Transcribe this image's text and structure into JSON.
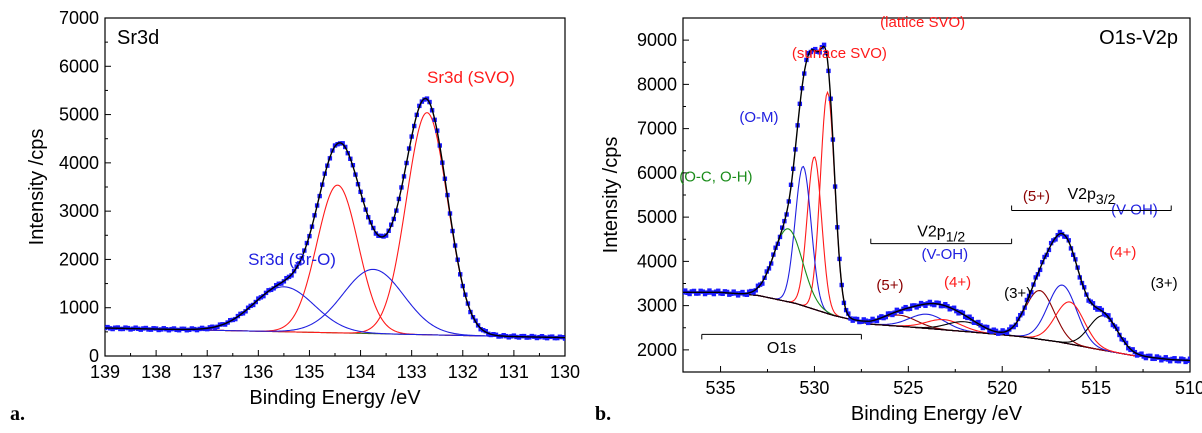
{
  "colors": {
    "axis": "#000000",
    "data": "#1a1aff",
    "fit": "#000000",
    "red": "#ff1a1a",
    "blue": "#2020e0",
    "green": "#1a8c1a",
    "darkred": "#8b0000",
    "black": "#000000",
    "bg": "#ffffff"
  },
  "chart_data": [
    {
      "type": "line",
      "panel": "a.",
      "label": "Sr3d",
      "xlabel": "Binding Energy /eV",
      "ylabel": "Intensity /cps",
      "xlim": [
        139,
        130
      ],
      "ylim": [
        0,
        7000
      ],
      "xticks": [
        139,
        138,
        137,
        136,
        135,
        134,
        133,
        132,
        131,
        130
      ],
      "yticks": [
        0,
        1000,
        2000,
        3000,
        4000,
        5000,
        6000,
        7000
      ],
      "background": {
        "x": [
          139,
          130
        ],
        "y": [
          580,
          380
        ]
      },
      "peaks": [
        {
          "name": "Sr3d (SVO)",
          "color": "red",
          "center": 132.7,
          "height": 4600,
          "fwhm": 0.95
        },
        {
          "name": "",
          "color": "red",
          "center": 134.45,
          "height": 3060,
          "fwhm": 0.95
        },
        {
          "name": "Sr3d (Sr-O)",
          "color": "blue",
          "center": 135.5,
          "height": 930,
          "fwhm": 1.4
        },
        {
          "name": "",
          "color": "blue",
          "center": 133.75,
          "height": 1330,
          "fwhm": 1.4
        }
      ],
      "annotations": [
        {
          "text": "Sr3d (SVO)",
          "x": 132.7,
          "y": 5650,
          "color": "red"
        },
        {
          "text": "Sr3d (Sr-O)",
          "x": 136.2,
          "y": 1880,
          "color": "blue"
        }
      ]
    },
    {
      "type": "line",
      "panel": "b.",
      "label": "O1s-V2p",
      "xlabel": "Binding Energy /eV",
      "ylabel": "Intensity /cps",
      "xlim": [
        537,
        510
      ],
      "ylim": [
        1500,
        9500
      ],
      "xticks": [
        535,
        530,
        525,
        520,
        515,
        510
      ],
      "yticks": [
        2000,
        3000,
        4000,
        5000,
        6000,
        7000,
        8000,
        9000
      ],
      "background": {
        "x": [
          537,
          535,
          533,
          531,
          529,
          527,
          525,
          523,
          521,
          519,
          517,
          515,
          513,
          511,
          510
        ],
        "y": [
          3300,
          3300,
          3230,
          3050,
          2780,
          2580,
          2520,
          2450,
          2380,
          2300,
          2180,
          2020,
          1870,
          1780,
          1760
        ]
      },
      "peaks": [
        {
          "name": "(lattice SVO)",
          "color": "red",
          "center": 529.3,
          "height": 5000,
          "fwhm": 0.9
        },
        {
          "name": "(surface SVO)",
          "color": "red",
          "center": 530.0,
          "height": 3450,
          "fwhm": 0.9
        },
        {
          "name": "(O-M)",
          "color": "blue",
          "center": 530.6,
          "height": 3150,
          "fwhm": 1.0
        },
        {
          "name": "(O-C, O-H)",
          "color": "green",
          "center": 531.4,
          "height": 1650,
          "fwhm": 1.8
        },
        {
          "name": "(5+)",
          "color": "darkred",
          "center": 525.5,
          "height": 250,
          "fwhm": 2.2
        },
        {
          "name": "(V-OH)",
          "color": "blue",
          "center": 524.0,
          "height": 320,
          "fwhm": 2.2
        },
        {
          "name": "(4+)",
          "color": "red",
          "center": 523.1,
          "height": 230,
          "fwhm": 2.2
        },
        {
          "name": "(3+)",
          "color": "black",
          "center": 522.0,
          "height": 220,
          "fwhm": 2.2
        },
        {
          "name": "(5+)",
          "color": "darkred",
          "center": 518.0,
          "height": 1100,
          "fwhm": 1.8
        },
        {
          "name": "(V-OH)",
          "color": "blue",
          "center": 516.8,
          "height": 1300,
          "fwhm": 1.8
        },
        {
          "name": "(4+)",
          "color": "red",
          "center": 516.4,
          "height": 950,
          "fwhm": 1.8
        },
        {
          "name": "(3+)",
          "color": "black",
          "center": 514.6,
          "height": 780,
          "fwhm": 1.8
        }
      ],
      "annotations": [
        {
          "text": "(lattice SVO)",
          "x": 526.5,
          "y": 9300,
          "color": "red"
        },
        {
          "text": "(surface SVO)",
          "x": 531.2,
          "y": 8600,
          "color": "red"
        },
        {
          "text": "(O-M)",
          "x": 534.0,
          "y": 7150,
          "color": "blue"
        },
        {
          "text": "(O-C, O-H)",
          "x": 537.2,
          "y": 5800,
          "color": "green"
        },
        {
          "text": "(V-OH)",
          "x": 524.3,
          "y": 4050,
          "color": "blue"
        },
        {
          "text": "(5+)",
          "x": 526.7,
          "y": 3350,
          "color": "darkred"
        },
        {
          "text": "(4+)",
          "x": 523.1,
          "y": 3420,
          "color": "red"
        },
        {
          "text": "(3+)",
          "x": 519.9,
          "y": 3170,
          "color": "black"
        },
        {
          "text": "(5+)",
          "x": 518.9,
          "y": 5370,
          "color": "darkred"
        },
        {
          "text": "(V-OH)",
          "x": 514.2,
          "y": 5060,
          "color": "blue"
        },
        {
          "text": "(4+)",
          "x": 514.3,
          "y": 4100,
          "color": "red"
        },
        {
          "text": "(3+)",
          "x": 512.1,
          "y": 3400,
          "color": "black"
        }
      ],
      "brackets": [
        {
          "text": "O1s",
          "x": [
            536.0,
            527.5
          ],
          "y": 2350,
          "text_y": 2060
        },
        {
          "text": "V2p1/2",
          "text_main": "V2p",
          "text_sub": "1/2",
          "x": [
            527.0,
            519.5
          ],
          "y": 4400,
          "text_y": 4700
        },
        {
          "text": "V2p3/2",
          "text_main": "V2p",
          "text_sub": "3/2",
          "x": [
            519.5,
            511.0
          ],
          "y": 5150,
          "text_y": 5550
        }
      ]
    }
  ]
}
